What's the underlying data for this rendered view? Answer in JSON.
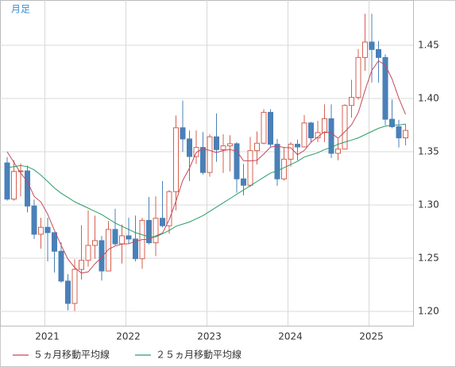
{
  "chart_data": {
    "type": "candlestick",
    "title": "月足",
    "categories": [
      null,
      null,
      null,
      null,
      null,
      "2021",
      null,
      null,
      null,
      null,
      null,
      null,
      null,
      null,
      null,
      null,
      null,
      "2022",
      null,
      null,
      null,
      null,
      null,
      null,
      null,
      null,
      null,
      null,
      null,
      "2023",
      null,
      null,
      null,
      null,
      null,
      null,
      null,
      null,
      null,
      null,
      null,
      "2024",
      null,
      null,
      null,
      null,
      null,
      null,
      null,
      null,
      null,
      null,
      null,
      "2025",
      null,
      null,
      null,
      null,
      null,
      null
    ],
    "open": [
      1.3395,
      1.3055,
      1.3315,
      1.332,
      1.299,
      1.2725,
      1.279,
      1.274,
      1.2565,
      1.2285,
      1.2075,
      1.2395,
      1.248,
      1.262,
      1.2665,
      1.238,
      1.277,
      1.2635,
      1.271,
      1.268,
      1.2495,
      1.2855,
      1.2645,
      1.2875,
      1.2805,
      1.3125,
      1.3725,
      1.362,
      1.3455,
      1.354,
      1.3305,
      1.364,
      1.352,
      1.3555,
      1.3575,
      1.3245,
      1.3185,
      1.351,
      1.358,
      1.387,
      1.357,
      1.3245,
      1.343,
      1.357,
      1.3545,
      1.377,
      1.363,
      1.368,
      1.381,
      1.3485,
      1.3525,
      1.3935,
      1.401,
      1.4385,
      1.453,
      1.446,
      1.4385,
      1.3805,
      1.3735,
      1.363
    ],
    "high": [
      1.345,
      1.342,
      1.339,
      1.337,
      1.305,
      1.288,
      1.288,
      1.274,
      1.265,
      1.235,
      1.249,
      1.281,
      1.295,
      1.29,
      1.271,
      1.285,
      1.2965,
      1.2815,
      1.288,
      1.29,
      1.288,
      1.3075,
      1.308,
      1.3225,
      1.314,
      1.384,
      1.398,
      1.37,
      1.37,
      1.3685,
      1.3665,
      1.386,
      1.3665,
      1.3655,
      1.359,
      1.3385,
      1.364,
      1.369,
      1.39,
      1.39,
      1.362,
      1.3545,
      1.359,
      1.3615,
      1.3845,
      1.378,
      1.379,
      1.3945,
      1.3945,
      1.362,
      1.3945,
      1.4175,
      1.4465,
      1.4795,
      1.4795,
      1.454,
      1.4415,
      1.399,
      1.38,
      1.376
    ],
    "low": [
      1.304,
      1.304,
      1.308,
      1.293,
      1.268,
      1.259,
      1.247,
      1.2365,
      1.227,
      1.201,
      1.2005,
      1.23,
      1.242,
      1.2495,
      1.229,
      1.239,
      1.262,
      1.245,
      1.2635,
      1.247,
      1.24,
      1.263,
      1.252,
      1.279,
      1.273,
      1.295,
      1.35,
      1.3225,
      1.3385,
      1.3285,
      1.3265,
      1.3405,
      1.33,
      1.3315,
      1.3115,
      1.309,
      1.317,
      1.338,
      1.357,
      1.354,
      1.318,
      1.323,
      1.336,
      1.342,
      1.354,
      1.359,
      1.359,
      1.359,
      1.344,
      1.342,
      1.3525,
      1.382,
      1.399,
      1.426,
      1.415,
      1.415,
      1.375,
      1.372,
      1.354,
      1.356
    ],
    "close": [
      1.3055,
      1.3315,
      1.332,
      1.299,
      1.2725,
      1.279,
      1.274,
      1.2565,
      1.2285,
      1.2075,
      1.2395,
      1.248,
      1.262,
      1.2665,
      1.238,
      1.277,
      1.2635,
      1.271,
      1.268,
      1.2495,
      1.2855,
      1.2645,
      1.2875,
      1.2805,
      1.3125,
      1.3725,
      1.362,
      1.3455,
      1.354,
      1.3305,
      1.364,
      1.352,
      1.3555,
      1.3575,
      1.3245,
      1.3185,
      1.351,
      1.358,
      1.387,
      1.357,
      1.3245,
      1.343,
      1.357,
      1.3545,
      1.377,
      1.363,
      1.368,
      1.381,
      1.3485,
      1.3525,
      1.3935,
      1.401,
      1.4385,
      1.453,
      1.446,
      1.4385,
      1.3805,
      1.3735,
      1.363,
      1.37
    ],
    "up_color": "#d4604f",
    "down_color": "#4a80b8",
    "series": [
      {
        "name": "５ヵ月移動平均線",
        "color": "#c8485a",
        "values": [
          1.35,
          1.34,
          1.33,
          1.322,
          1.3081,
          1.3028,
          1.2913,
          1.2762,
          1.2621,
          1.2491,
          1.2412,
          1.236,
          1.2371,
          1.2447,
          1.2508,
          1.2583,
          1.2614,
          1.2632,
          1.2635,
          1.2658,
          1.2675,
          1.2677,
          1.271,
          1.2735,
          1.2861,
          1.3035,
          1.323,
          1.3346,
          1.3493,
          1.3529,
          1.3512,
          1.3492,
          1.3512,
          1.3519,
          1.3507,
          1.3416,
          1.3414,
          1.3419,
          1.3478,
          1.3543,
          1.3555,
          1.3539,
          1.3537,
          1.3472,
          1.3512,
          1.3589,
          1.3639,
          1.3687,
          1.3675,
          1.3626,
          1.3687,
          1.3753,
          1.3868,
          1.4077,
          1.4264,
          1.4354,
          1.4313,
          1.4183,
          1.4003,
          1.3851
        ]
      },
      {
        "name": "２５ヵ月移動平均線",
        "color": "#2a9d68",
        "values": [
          1.335,
          1.336,
          1.337,
          1.336,
          1.333,
          1.328,
          1.322,
          1.316,
          1.311,
          1.307,
          1.303,
          1.3,
          1.297,
          1.294,
          1.291,
          1.287,
          1.283,
          1.28,
          1.277,
          1.274,
          1.272,
          1.27,
          1.27,
          1.273,
          1.276,
          1.28,
          1.282,
          1.284,
          1.287,
          1.29,
          1.294,
          1.298,
          1.302,
          1.306,
          1.31,
          1.314,
          1.318,
          1.322,
          1.326,
          1.33,
          1.332,
          1.335,
          1.338,
          1.341,
          1.345,
          1.347,
          1.349,
          1.352,
          1.354,
          1.357,
          1.359,
          1.361,
          1.363,
          1.366,
          1.369,
          1.372,
          1.374,
          1.375,
          1.375,
          1.376
        ]
      }
    ],
    "ylim": [
      1.1866,
      1.4925
    ],
    "yticks": [
      {
        "value": 1.2,
        "label": "1.20"
      },
      1.25,
      {
        "value": 1.3,
        "label": "1.30"
      },
      1.35,
      {
        "value": 1.4,
        "label": "1.40"
      },
      1.45
    ],
    "grid": true
  }
}
